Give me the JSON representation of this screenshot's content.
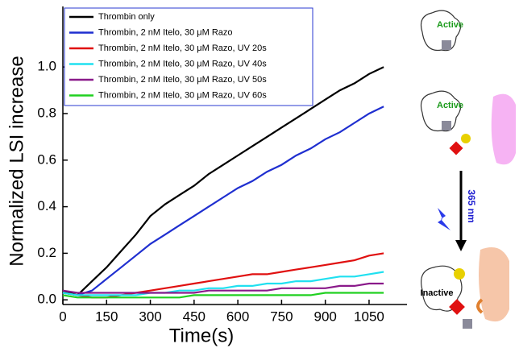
{
  "chart_data": {
    "type": "line",
    "xlabel": "Time(s)",
    "ylabel": "Normalized LSI increase",
    "x": [
      0,
      50,
      100,
      150,
      200,
      250,
      300,
      350,
      400,
      450,
      500,
      550,
      600,
      650,
      700,
      750,
      800,
      850,
      900,
      950,
      1000,
      1050,
      1100
    ],
    "series": [
      {
        "name": "Thrombin only",
        "color": "#000000",
        "values": [
          0.04,
          0.02,
          0.08,
          0.14,
          0.21,
          0.28,
          0.36,
          0.41,
          0.45,
          0.49,
          0.54,
          0.58,
          0.62,
          0.66,
          0.7,
          0.74,
          0.78,
          0.82,
          0.86,
          0.9,
          0.93,
          0.97,
          1.0
        ]
      },
      {
        "name": "Thrombin, 2 nM Itelo, 30 μM Razo",
        "color": "#1f2fd0",
        "values": [
          0.03,
          0.02,
          0.04,
          0.09,
          0.14,
          0.19,
          0.24,
          0.28,
          0.32,
          0.36,
          0.4,
          0.44,
          0.48,
          0.51,
          0.55,
          0.58,
          0.62,
          0.65,
          0.69,
          0.72,
          0.76,
          0.8,
          0.83
        ]
      },
      {
        "name": "Thrombin, 2 nM Itelo, 30 μM Razo, UV 20s",
        "color": "#e01010",
        "values": [
          0.03,
          0.02,
          0.01,
          0.01,
          0.02,
          0.03,
          0.04,
          0.05,
          0.06,
          0.07,
          0.08,
          0.09,
          0.1,
          0.11,
          0.11,
          0.12,
          0.13,
          0.14,
          0.15,
          0.16,
          0.17,
          0.19,
          0.2
        ]
      },
      {
        "name": "Thrombin, 2 nM Itelo, 30 μM Razo, UV 40s",
        "color": "#20e0f0",
        "values": [
          0.03,
          0.02,
          0.02,
          0.02,
          0.02,
          0.02,
          0.03,
          0.03,
          0.04,
          0.04,
          0.05,
          0.05,
          0.06,
          0.06,
          0.07,
          0.07,
          0.08,
          0.08,
          0.09,
          0.1,
          0.1,
          0.11,
          0.12
        ]
      },
      {
        "name": "Thrombin, 2 nM Itelo, 30 μM Razo, UV 50s",
        "color": "#8a1a8a",
        "values": [
          0.04,
          0.03,
          0.03,
          0.03,
          0.03,
          0.03,
          0.03,
          0.03,
          0.03,
          0.03,
          0.04,
          0.04,
          0.04,
          0.04,
          0.04,
          0.05,
          0.05,
          0.05,
          0.05,
          0.06,
          0.06,
          0.07,
          0.07
        ]
      },
      {
        "name": "Thrombin, 2 nM Itelo, 30 μM Razo, UV 60s",
        "color": "#20d020",
        "values": [
          0.02,
          0.01,
          0.01,
          0.01,
          0.01,
          0.01,
          0.01,
          0.01,
          0.01,
          0.02,
          0.02,
          0.02,
          0.02,
          0.02,
          0.02,
          0.02,
          0.02,
          0.02,
          0.03,
          0.03,
          0.03,
          0.03,
          0.03
        ]
      }
    ],
    "xlim": [
      0,
      1180
    ],
    "xticks": [
      0,
      150,
      300,
      450,
      600,
      750,
      900,
      1050
    ],
    "ylim": [
      -0.02,
      1.26
    ],
    "yticks": [
      {
        "value": 0,
        "label": "0.0"
      },
      0.2,
      0.4,
      0.6,
      0.8,
      {
        "value": 1,
        "label": "1.0"
      }
    ],
    "legend": "upper left"
  },
  "illustration": {
    "labels": [
      "Active",
      "Active",
      "365 nm",
      "Inactive"
    ]
  }
}
